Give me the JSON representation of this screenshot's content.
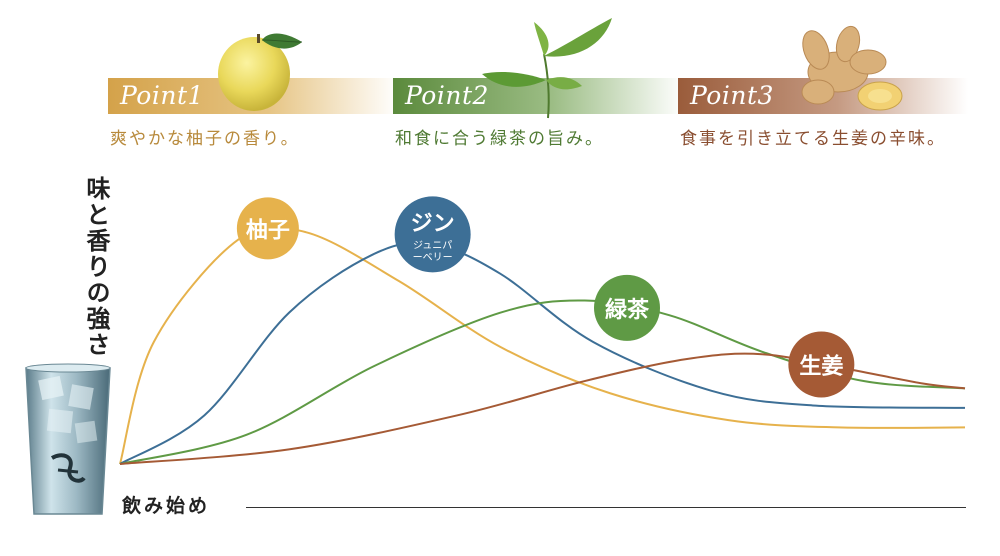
{
  "points": [
    {
      "label": "Point1",
      "desc": "爽やかな柚子の香り。",
      "color": "#d4a24a",
      "text_color": "#b88a3c"
    },
    {
      "label": "Point2",
      "desc": "和食に合う緑茶の旨み。",
      "color": "#5b8a3c",
      "text_color": "#4f7a33"
    },
    {
      "label": "Point3",
      "desc": "食事を引き立てる生姜の辛味。",
      "color": "#9a5c3b",
      "text_color": "#8a4e30"
    }
  ],
  "illustrations": [
    "yuzu-fruit",
    "green-tea-leaves",
    "ginger-root"
  ],
  "chart_data": {
    "type": "line",
    "xlabel": "飲み始め",
    "ylabel": "味と香りの強さ",
    "series": [
      {
        "name": "柚子",
        "sub": "",
        "color": "#e6b24c",
        "points": [
          [
            0,
            0
          ],
          [
            0.04,
            0.5
          ],
          [
            0.14,
            0.92
          ],
          [
            0.22,
            0.95
          ],
          [
            0.33,
            0.75
          ],
          [
            0.45,
            0.48
          ],
          [
            0.58,
            0.29
          ],
          [
            0.72,
            0.18
          ],
          [
            0.85,
            0.15
          ],
          [
            1,
            0.15
          ]
        ]
      },
      {
        "name": "ジン",
        "sub": "ジュニパーベリー",
        "color": "#3d6f96",
        "points": [
          [
            0,
            0
          ],
          [
            0.1,
            0.2
          ],
          [
            0.2,
            0.62
          ],
          [
            0.3,
            0.86
          ],
          [
            0.37,
            0.9
          ],
          [
            0.45,
            0.78
          ],
          [
            0.56,
            0.5
          ],
          [
            0.7,
            0.3
          ],
          [
            0.82,
            0.24
          ],
          [
            1,
            0.23
          ]
        ]
      },
      {
        "name": "緑茶",
        "sub": "",
        "color": "#5f9a45",
        "points": [
          [
            0,
            0
          ],
          [
            0.15,
            0.12
          ],
          [
            0.3,
            0.4
          ],
          [
            0.45,
            0.62
          ],
          [
            0.55,
            0.67
          ],
          [
            0.65,
            0.61
          ],
          [
            0.76,
            0.46
          ],
          [
            0.88,
            0.34
          ],
          [
            1,
            0.31
          ]
        ]
      },
      {
        "name": "生姜",
        "sub": "",
        "color": "#a55a35",
        "points": [
          [
            0,
            0
          ],
          [
            0.2,
            0.06
          ],
          [
            0.4,
            0.2
          ],
          [
            0.55,
            0.34
          ],
          [
            0.67,
            0.43
          ],
          [
            0.76,
            0.45
          ],
          [
            0.86,
            0.39
          ],
          [
            0.95,
            0.33
          ],
          [
            1,
            0.31
          ]
        ]
      }
    ]
  }
}
